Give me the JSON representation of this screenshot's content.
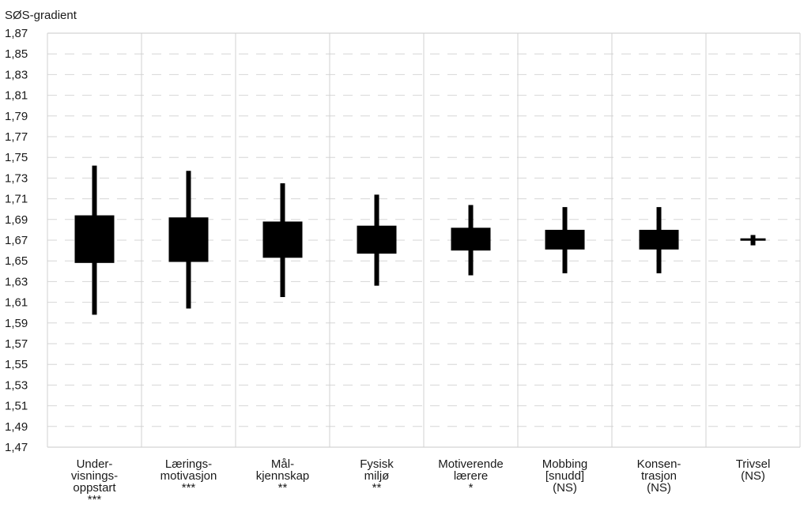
{
  "chart_data": {
    "type": "candlestick",
    "ylabel": "SØS-gradient",
    "xlabel": "",
    "title": "",
    "ylim": [
      1.47,
      1.87
    ],
    "y_ticks": [
      "1,87",
      "1,85",
      "1,83",
      "1,81",
      "1,79",
      "1,77",
      "1,75",
      "1,73",
      "1,71",
      "1,69",
      "1,67",
      "1,65",
      "1,63",
      "1,61",
      "1,59",
      "1,57",
      "1,55",
      "1,53",
      "1,51",
      "1,49",
      "1,47"
    ],
    "y_tick_values": [
      1.87,
      1.85,
      1.83,
      1.81,
      1.79,
      1.77,
      1.75,
      1.73,
      1.71,
      1.69,
      1.67,
      1.65,
      1.63,
      1.61,
      1.59,
      1.57,
      1.55,
      1.53,
      1.51,
      1.49,
      1.47
    ],
    "grid": "horizontal dashed, vertical solid separators",
    "categories": [
      {
        "lines": [
          "Under-",
          "visnings-",
          "oppstart",
          "***"
        ],
        "low": 1.598,
        "q1": 1.648,
        "q3": 1.694,
        "high": 1.742
      },
      {
        "lines": [
          "Lærings-",
          "motivasjon",
          "***"
        ],
        "low": 1.604,
        "q1": 1.649,
        "q3": 1.692,
        "high": 1.737
      },
      {
        "lines": [
          "Mål-",
          "kjennskap",
          "**"
        ],
        "low": 1.615,
        "q1": 1.653,
        "q3": 1.688,
        "high": 1.725
      },
      {
        "lines": [
          "Fysisk",
          "miljø",
          "**"
        ],
        "low": 1.626,
        "q1": 1.657,
        "q3": 1.684,
        "high": 1.714
      },
      {
        "lines": [
          "Motiverende",
          "lærere",
          "*"
        ],
        "low": 1.636,
        "q1": 1.66,
        "q3": 1.682,
        "high": 1.704
      },
      {
        "lines": [
          "Mobbing",
          "[snudd]",
          "(NS)"
        ],
        "low": 1.638,
        "q1": 1.661,
        "q3": 1.68,
        "high": 1.702
      },
      {
        "lines": [
          "Konsen-",
          "trasjon",
          "(NS)"
        ],
        "low": 1.638,
        "q1": 1.661,
        "q3": 1.68,
        "high": 1.702
      },
      {
        "lines": [
          "Trivsel",
          "(NS)"
        ],
        "low": 1.665,
        "q1": 1.67,
        "q3": 1.671,
        "high": 1.675
      }
    ]
  }
}
